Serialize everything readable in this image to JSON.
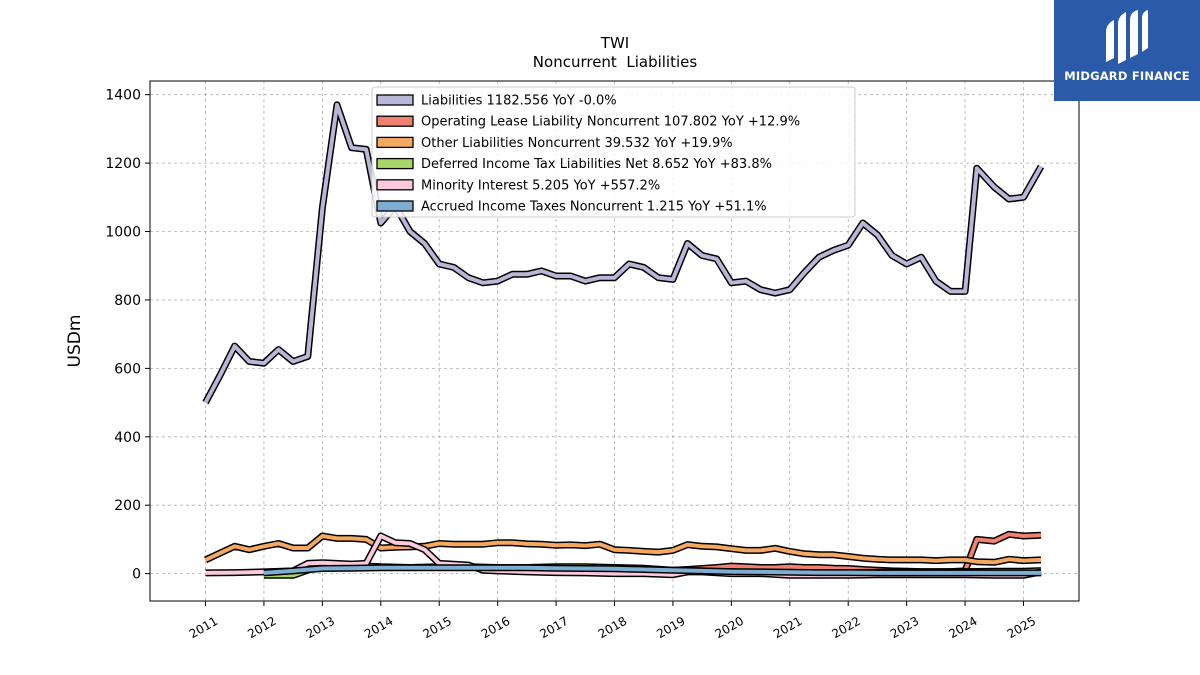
{
  "logo": {
    "text": "MIDGARD FINANCE",
    "icon": "midgard-logo-icon",
    "background": "#2a5aa8"
  },
  "chart_data": {
    "type": "line",
    "title": "TWI",
    "subtitle": "Noncurrent  Liabilities",
    "ylabel": "USDm",
    "xlabel": "",
    "ylim": [
      -80,
      1440
    ],
    "xlim": [
      2010.05,
      2025.95
    ],
    "yticks": [
      0,
      200,
      400,
      600,
      800,
      1000,
      1200,
      1400
    ],
    "xticks": [
      "2011",
      "2012",
      "2013",
      "2014",
      "2015",
      "2016",
      "2017",
      "2018",
      "2019",
      "2020",
      "2021",
      "2022",
      "2023",
      "2024",
      "2025"
    ],
    "grid": true,
    "legend_position": "top-center",
    "series": [
      {
        "name": "Liabilities  1182.556 YoY -0.0%",
        "color": "#b9b7d8",
        "x": [
          2011.0,
          2011.25,
          2011.5,
          2011.75,
          2012.0,
          2012.25,
          2012.5,
          2012.75,
          2013.0,
          2013.25,
          2013.5,
          2013.75,
          2014.0,
          2014.25,
          2014.5,
          2014.75,
          2015.0,
          2015.25,
          2015.5,
          2015.75,
          2016.0,
          2016.25,
          2016.5,
          2016.75,
          2017.0,
          2017.25,
          2017.5,
          2017.75,
          2018.0,
          2018.25,
          2018.5,
          2018.75,
          2019.0,
          2019.25,
          2019.5,
          2019.75,
          2020.0,
          2020.25,
          2020.5,
          2020.75,
          2021.0,
          2021.25,
          2021.5,
          2021.75,
          2022.0,
          2022.25,
          2022.5,
          2022.75,
          2023.0,
          2023.25,
          2023.5,
          2023.75,
          2024.0,
          2024.2,
          2024.5,
          2024.75,
          2025.0,
          2025.3
        ],
        "values": [
          500,
          580,
          665,
          620,
          615,
          655,
          620,
          635,
          1070,
          1370,
          1245,
          1240,
          1025,
          1075,
          1000,
          965,
          905,
          895,
          865,
          850,
          855,
          875,
          875,
          885,
          870,
          870,
          855,
          865,
          865,
          905,
          895,
          865,
          860,
          965,
          930,
          920,
          850,
          855,
          830,
          820,
          830,
          880,
          925,
          945,
          960,
          1025,
          990,
          930,
          905,
          925,
          855,
          825,
          825,
          1185,
          1130,
          1095,
          1100,
          1190
        ]
      },
      {
        "name": "Operating Lease Liability Noncurrent  107.802 YoY +12.9%",
        "color": "#f08070",
        "x": [
          2019.0,
          2019.25,
          2019.5,
          2019.75,
          2020.0,
          2020.25,
          2020.5,
          2020.75,
          2021.0,
          2021.25,
          2021.5,
          2021.75,
          2022.0,
          2022.25,
          2022.5,
          2022.75,
          2023.0,
          2023.25,
          2023.5,
          2023.75,
          2024.0,
          2024.2,
          2024.5,
          2024.75,
          2025.0,
          2025.3
        ],
        "values": [
          10,
          12,
          15,
          18,
          22,
          20,
          18,
          18,
          20,
          18,
          18,
          16,
          15,
          12,
          10,
          8,
          7,
          6,
          6,
          6,
          8,
          100,
          95,
          115,
          110,
          112
        ]
      },
      {
        "name": "Other Liabilities Noncurrent  39.532 YoY +19.9%",
        "color": "#f5a860",
        "x": [
          2011.0,
          2011.25,
          2011.5,
          2011.75,
          2012.0,
          2012.25,
          2012.5,
          2012.75,
          2013.0,
          2013.25,
          2013.5,
          2013.75,
          2014.0,
          2014.25,
          2014.5,
          2014.75,
          2015.0,
          2015.25,
          2015.5,
          2015.75,
          2016.0,
          2016.25,
          2016.5,
          2016.75,
          2017.0,
          2017.25,
          2017.5,
          2017.75,
          2018.0,
          2018.25,
          2018.5,
          2018.75,
          2019.0,
          2019.25,
          2019.5,
          2019.75,
          2020.0,
          2020.25,
          2020.5,
          2020.75,
          2021.0,
          2021.25,
          2021.5,
          2021.75,
          2022.0,
          2022.25,
          2022.5,
          2022.75,
          2023.0,
          2023.25,
          2023.5,
          2023.75,
          2024.0,
          2024.2,
          2024.5,
          2024.75,
          2025.0,
          2025.3
        ],
        "values": [
          40,
          60,
          80,
          70,
          80,
          88,
          75,
          75,
          110,
          103,
          103,
          100,
          75,
          77,
          78,
          80,
          88,
          86,
          86,
          86,
          90,
          90,
          87,
          86,
          83,
          84,
          82,
          86,
          70,
          68,
          65,
          63,
          68,
          85,
          80,
          78,
          73,
          68,
          68,
          74,
          65,
          58,
          55,
          55,
          50,
          45,
          42,
          40,
          40,
          40,
          38,
          40,
          40,
          35,
          33,
          42,
          38,
          40
        ]
      },
      {
        "name": "Deferred Income Tax Liabilities Net  8.652 YoY +83.8%",
        "color": "#a9d66b",
        "x": [
          2012.0,
          2012.5,
          2013.0,
          2013.5,
          2014.0,
          2014.5,
          2015.0,
          2015.5,
          2016.0,
          2016.5,
          2017.0,
          2017.5,
          2018.0,
          2018.5,
          2019.0,
          2019.5,
          2020.0,
          2020.5,
          2021.0,
          2021.5,
          2022.0,
          2022.5,
          2023.0,
          2023.5,
          2024.0,
          2024.5,
          2025.0,
          2025.3
        ],
        "values": [
          -5,
          -5,
          25,
          25,
          20,
          18,
          20,
          20,
          18,
          18,
          20,
          20,
          18,
          16,
          10,
          8,
          5,
          3,
          2,
          2,
          3,
          4,
          5,
          5,
          6,
          7,
          7,
          9
        ]
      },
      {
        "name": "Minority Interest  5.205 YoY +557.2%",
        "color": "#fcc9dc",
        "x": [
          2011.0,
          2011.5,
          2012.0,
          2012.5,
          2012.75,
          2013.0,
          2013.5,
          2013.75,
          2014.0,
          2014.25,
          2014.5,
          2014.75,
          2015.0,
          2015.5,
          2015.75,
          2016.0,
          2016.5,
          2017.0,
          2017.5,
          2018.0,
          2018.5,
          2019.0,
          2019.25,
          2019.5,
          2020.0,
          2020.5,
          2021.0,
          2021.5,
          2022.0,
          2022.5,
          2023.0,
          2023.5,
          2024.0,
          2024.5,
          2025.0,
          2025.3
        ],
        "values": [
          2,
          3,
          5,
          8,
          30,
          32,
          28,
          30,
          110,
          90,
          88,
          70,
          30,
          25,
          10,
          8,
          5,
          3,
          2,
          0,
          0,
          -3,
          5,
          5,
          0,
          0,
          -5,
          -5,
          -5,
          -3,
          -3,
          -3,
          -3,
          -5,
          -5,
          5
        ]
      },
      {
        "name": "Accrued Income Taxes Noncurrent  1.215 YoY +51.1%",
        "color": "#7eaed2",
        "x": [
          2012.0,
          2012.5,
          2013.0,
          2013.5,
          2014.0,
          2014.5,
          2015.0,
          2015.5,
          2016.0,
          2016.5,
          2017.0,
          2017.5,
          2018.0,
          2018.5,
          2019.0,
          2019.5,
          2020.0,
          2020.5,
          2021.0,
          2021.5,
          2022.0,
          2022.5,
          2023.0,
          2023.5,
          2024.0,
          2024.5,
          2025.0,
          2025.3
        ],
        "values": [
          2,
          8,
          15,
          16,
          17,
          17,
          17,
          17,
          17,
          17,
          16,
          15,
          14,
          12,
          10,
          8,
          6,
          5,
          4,
          3,
          3,
          2,
          2,
          2,
          2,
          2,
          2,
          2
        ]
      }
    ]
  }
}
